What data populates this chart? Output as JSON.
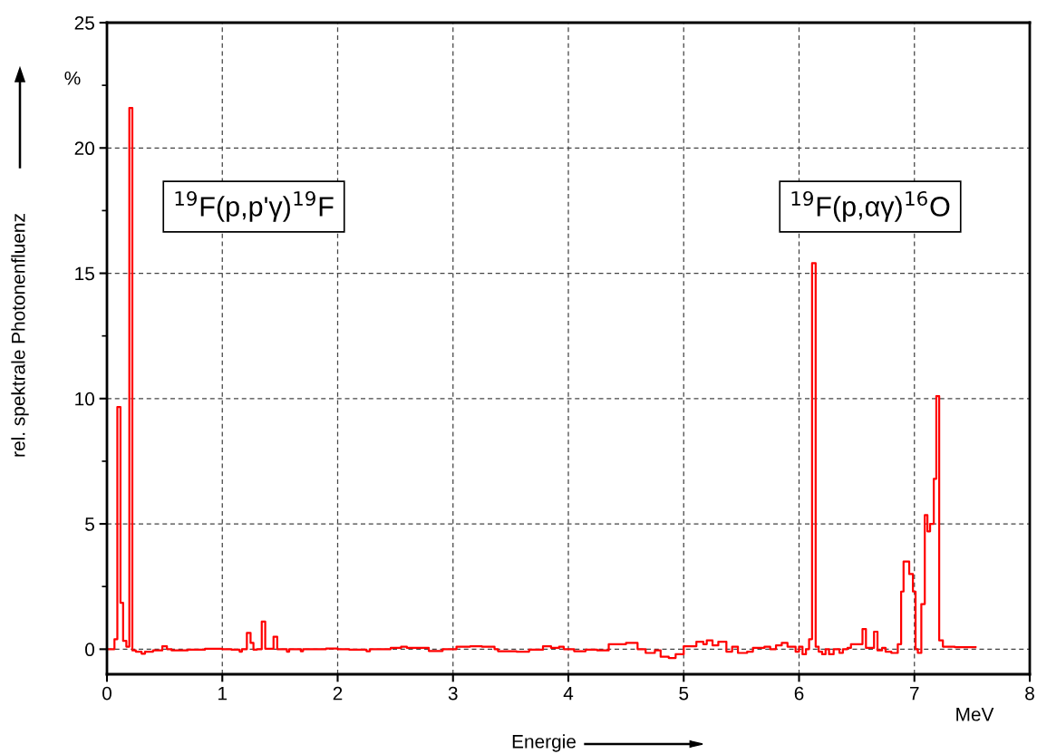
{
  "chart_data": {
    "type": "step",
    "xlabel": "Energie",
    "ylabel": "rel. spektrale Photonenfluenz",
    "annotations": [
      "%",
      "MeV",
      "$^{19}$F(p,p'γ)$^{19}$F",
      "$^{19}$F(p,αγ)$^{16}$O"
    ],
    "xlim": [
      0,
      8
    ],
    "xticks": [
      0,
      1,
      2,
      3,
      4,
      5,
      6,
      7,
      8
    ],
    "ylim": [
      -1,
      25
    ],
    "yticks": [
      0,
      {
        "value": 2.5,
        "label": null
      },
      5,
      {
        "value": 7.5,
        "label": null
      },
      10,
      {
        "value": 12.5,
        "label": null
      },
      15,
      {
        "value": 17.5,
        "label": null
      },
      20,
      {
        "value": 22.5,
        "label": null
      },
      25
    ],
    "grid": true,
    "line_style": "solid",
    "series": [
      {
        "color": "#ff0000",
        "x": [
          0.015,
          0.065,
          0.09,
          0.117,
          0.14,
          0.168,
          0.194,
          0.22,
          0.25,
          0.3,
          0.33,
          0.4,
          0.48,
          0.52,
          0.56,
          0.7,
          0.85,
          1.0,
          1.08,
          1.15,
          1.17,
          1.213,
          1.245,
          1.27,
          1.3,
          1.342,
          1.372,
          1.444,
          1.476,
          1.56,
          1.58,
          1.68,
          1.7,
          1.9,
          2.0,
          2.1,
          2.25,
          2.28,
          2.46,
          2.55,
          2.6,
          2.7,
          2.79,
          2.91,
          3.03,
          3.15,
          3.25,
          3.36,
          3.39,
          3.55,
          3.66,
          3.78,
          3.85,
          3.92,
          3.96,
          4.05,
          4.15,
          4.25,
          4.35,
          4.5,
          4.6,
          4.67,
          4.75,
          4.8,
          4.87,
          4.93,
          5.0,
          5.11,
          5.17,
          5.2,
          5.25,
          5.3,
          5.37,
          5.42,
          5.47,
          5.55,
          5.6,
          5.7,
          5.75,
          5.8,
          5.85,
          5.9,
          5.97,
          6.0,
          6.03,
          6.06,
          6.087,
          6.113,
          6.144,
          6.17,
          6.2,
          6.23,
          6.26,
          6.3,
          6.35,
          6.38,
          6.42,
          6.45,
          6.55,
          6.58,
          6.65,
          6.68,
          6.72,
          6.75,
          6.8,
          6.856,
          6.885,
          6.906,
          6.955,
          6.987,
          7.01,
          7.03,
          7.06,
          7.09,
          7.113,
          7.136,
          7.168,
          7.19,
          7.215,
          7.247,
          7.35,
          7.53
        ],
        "values": [
          0,
          0.4,
          9.66,
          1.85,
          0.33,
          0.1,
          21.6,
          -0.05,
          -0.1,
          -0.18,
          -0.1,
          -0.05,
          0.12,
          0,
          -0.05,
          -0.02,
          0.02,
          0,
          -0.02,
          -0.1,
          0,
          0.65,
          0.25,
          -0.02,
          0,
          1.1,
          0.02,
          0.5,
          0,
          -0.1,
          0,
          -0.08,
          0,
          0.03,
          0,
          -0.02,
          -0.08,
          0,
          0.05,
          0.1,
          0.05,
          0.05,
          -0.07,
          0,
          0.1,
          0.12,
          0.1,
          0,
          -0.08,
          -0.1,
          -0.02,
          0.12,
          0.05,
          0.1,
          0,
          -0.08,
          -0.02,
          -0.05,
          0.2,
          0.25,
          0,
          -0.15,
          -0.05,
          -0.3,
          -0.35,
          -0.2,
          0.12,
          0.3,
          0.2,
          0.35,
          0.15,
          0.3,
          -0.1,
          0.1,
          -0.15,
          -0.1,
          0.05,
          0.1,
          0,
          0.15,
          0.25,
          0.1,
          -0.1,
          0.1,
          -0.2,
          0,
          0.4,
          15.4,
          0.1,
          -0.1,
          -0.2,
          0,
          -0.2,
          0,
          -0.15,
          0,
          0.05,
          0.2,
          0.8,
          0.05,
          0.7,
          -0.05,
          0.05,
          -0.1,
          -0.15,
          0.2,
          2.3,
          3.5,
          3.0,
          2.3,
          0,
          -0.15,
          1.8,
          5.35,
          4.7,
          5.0,
          6.8,
          10.1,
          0.35,
          0.1,
          0.08,
          0.08
        ]
      }
    ]
  }
}
